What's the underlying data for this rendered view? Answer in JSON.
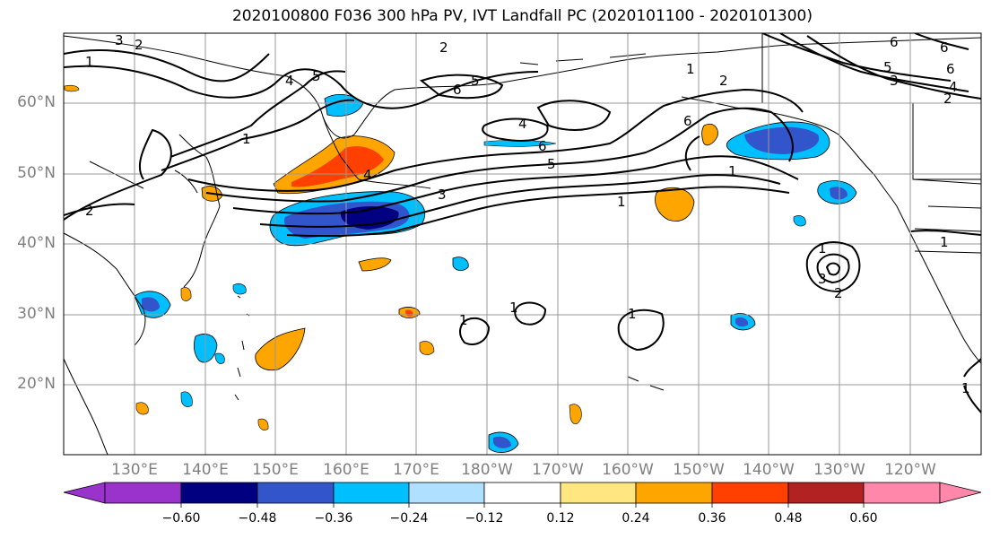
{
  "title": "2020100800 F036 300 hPa PV, IVT Landfall PC (2020101100 - 2020101300)",
  "lat_labels": [
    "60°N",
    "50°N",
    "40°N",
    "30°N",
    "20°N"
  ],
  "lon_labels": [
    "130°E",
    "140°E",
    "150°E",
    "160°E",
    "170°E",
    "180°W",
    "170°W",
    "160°W",
    "150°W",
    "140°W",
    "130°W",
    "120°W"
  ],
  "colorbar": {
    "ticks": [
      "−0.60",
      "−0.48",
      "−0.36",
      "−0.24",
      "−0.12",
      "0.12",
      "0.24",
      "0.36",
      "0.48",
      "0.60"
    ],
    "colors": [
      "#9933cc",
      "#000080",
      "#3355cc",
      "#00bfff",
      "#b0e0ff",
      "#ffffff",
      "#ffe680",
      "#ffa500",
      "#ff4000",
      "#b22222",
      "#ff88aa"
    ]
  },
  "contour_labels": [
    "1",
    "2",
    "3",
    "4",
    "5",
    "6"
  ],
  "colors": {
    "land_outline": "#000000",
    "grid": "#999999",
    "contour": "#000000"
  }
}
